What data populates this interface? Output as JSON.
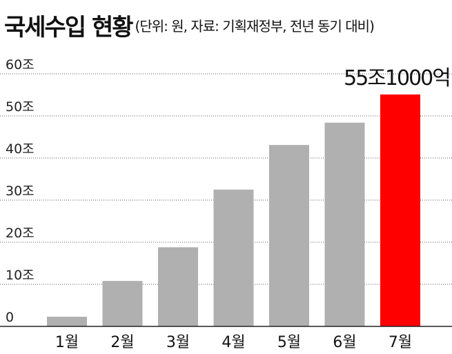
{
  "title": {
    "main": "국세수입 현황",
    "sub": "(단위: 원, 자료: 기획재정부, 전년 동기 대비)"
  },
  "chart_data": {
    "type": "bar",
    "title": "국세수입 현황",
    "subtitle": "(단위: 원, 자료: 기획재정부, 전년 동기 대비)",
    "categories": [
      "1월",
      "2월",
      "3월",
      "4월",
      "5월",
      "6월",
      "7월"
    ],
    "values": [
      2.3,
      10.8,
      18.8,
      32.5,
      43.1,
      48.4,
      55.1
    ],
    "ylim": [
      0,
      60
    ],
    "yticks": [
      0,
      10,
      20,
      30,
      40,
      50,
      60
    ],
    "ytick_labels": [
      "0",
      "10조",
      "20조",
      "30조",
      "40조",
      "50조",
      "60조"
    ],
    "grid": true,
    "legend": "none",
    "bar_color": "#b0b0b0",
    "highlight_index": 6,
    "highlight_color": "#ff0000",
    "annotation": {
      "text": "55조1000억",
      "category": "7월"
    }
  }
}
